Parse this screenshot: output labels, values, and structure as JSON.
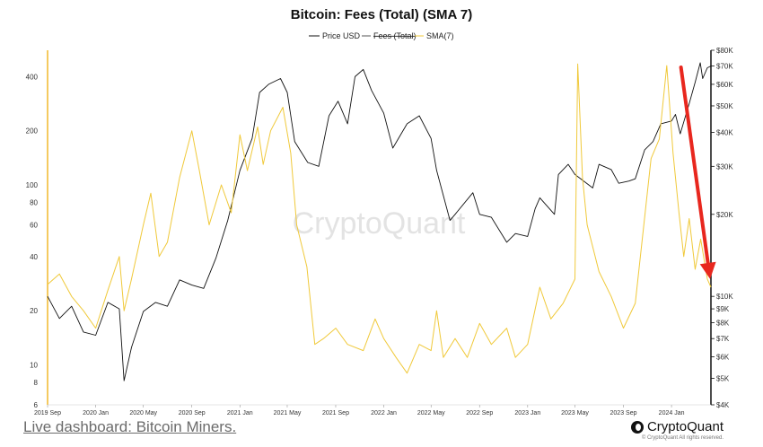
{
  "footer": {
    "link_text": "Live dashboard: Bitcoin Miners.",
    "brand": "CryptoQuant",
    "copyright": "© CryptoQuant All rights reserved."
  },
  "colors": {
    "price": "#111111",
    "fees": "#555555",
    "sma": "#f0c93a",
    "arrow": "#e8271e",
    "left_axis": "#f2b92b"
  },
  "chart_data": {
    "type": "line",
    "title": "Bitcoin: Fees (Total) (SMA 7)",
    "watermark": "CryptoQuant",
    "legend": {
      "placement": "top-center",
      "entries": [
        "Price USD",
        "Fees (Total)",
        "SMA(7)"
      ]
    },
    "x_ticks": [
      "2019 Sep",
      "2020 Jan",
      "2020 May",
      "2020 Sep",
      "2021 Jan",
      "2021 May",
      "2021 Sep",
      "2022 Jan",
      "2022 May",
      "2022 Sep",
      "2023 Jan",
      "2023 May",
      "2023 Sep",
      "2024 Jan"
    ],
    "left_axis": {
      "scale": "log",
      "ticks": [
        "6",
        "8",
        "10",
        "20",
        "40",
        "60",
        "80",
        "100",
        "200",
        "400"
      ],
      "range": [
        6,
        560
      ]
    },
    "right_axis": {
      "scale": "log",
      "ticks": [
        "$4K",
        "$5K",
        "$6K",
        "$7K",
        "$8K",
        "$9K",
        "$10K",
        "$20K",
        "$30K",
        "$40K",
        "$50K",
        "$60K",
        "$70K",
        "$80K"
      ],
      "range": [
        4000,
        80000
      ]
    },
    "x_range": [
      "2019-09-01",
      "2024-04-10"
    ],
    "series": [
      {
        "name": "Price USD",
        "axis": "right",
        "points": [
          [
            "2019-09-01",
            10000
          ],
          [
            "2019-10-01",
            8300
          ],
          [
            "2019-11-01",
            9200
          ],
          [
            "2019-12-01",
            7400
          ],
          [
            "2020-01-01",
            7200
          ],
          [
            "2020-02-01",
            9500
          ],
          [
            "2020-03-01",
            9000
          ],
          [
            "2020-03-13",
            4900
          ],
          [
            "2020-04-01",
            6500
          ],
          [
            "2020-05-01",
            8800
          ],
          [
            "2020-06-01",
            9500
          ],
          [
            "2020-07-01",
            9200
          ],
          [
            "2020-08-01",
            11500
          ],
          [
            "2020-09-01",
            11000
          ],
          [
            "2020-10-01",
            10700
          ],
          [
            "2020-11-01",
            13800
          ],
          [
            "2020-12-01",
            19000
          ],
          [
            "2021-01-01",
            29000
          ],
          [
            "2021-02-01",
            38000
          ],
          [
            "2021-02-20",
            56000
          ],
          [
            "2021-03-15",
            60000
          ],
          [
            "2021-04-14",
            63000
          ],
          [
            "2021-05-01",
            56000
          ],
          [
            "2021-05-20",
            37000
          ],
          [
            "2021-06-22",
            31000
          ],
          [
            "2021-07-20",
            30000
          ],
          [
            "2021-08-15",
            46000
          ],
          [
            "2021-09-07",
            52000
          ],
          [
            "2021-10-01",
            43000
          ],
          [
            "2021-10-20",
            64000
          ],
          [
            "2021-11-10",
            68000
          ],
          [
            "2021-12-01",
            57000
          ],
          [
            "2022-01-01",
            47000
          ],
          [
            "2022-01-24",
            35000
          ],
          [
            "2022-03-01",
            43000
          ],
          [
            "2022-04-01",
            46000
          ],
          [
            "2022-05-01",
            38000
          ],
          [
            "2022-05-15",
            29000
          ],
          [
            "2022-06-18",
            19000
          ],
          [
            "2022-07-01",
            20000
          ],
          [
            "2022-08-15",
            24000
          ],
          [
            "2022-09-01",
            20000
          ],
          [
            "2022-10-01",
            19500
          ],
          [
            "2022-11-09",
            15800
          ],
          [
            "2022-12-01",
            17000
          ],
          [
            "2023-01-01",
            16600
          ],
          [
            "2023-01-20",
            21000
          ],
          [
            "2023-02-01",
            23000
          ],
          [
            "2023-03-10",
            20000
          ],
          [
            "2023-03-20",
            28000
          ],
          [
            "2023-04-14",
            30500
          ],
          [
            "2023-05-01",
            28000
          ],
          [
            "2023-06-15",
            25000
          ],
          [
            "2023-07-01",
            30500
          ],
          [
            "2023-08-01",
            29200
          ],
          [
            "2023-08-20",
            26000
          ],
          [
            "2023-09-15",
            26500
          ],
          [
            "2023-10-01",
            27000
          ],
          [
            "2023-10-25",
            34500
          ],
          [
            "2023-11-15",
            37000
          ],
          [
            "2023-12-05",
            43000
          ],
          [
            "2024-01-01",
            44000
          ],
          [
            "2024-01-11",
            46500
          ],
          [
            "2024-01-23",
            39500
          ],
          [
            "2024-02-15",
            51000
          ],
          [
            "2024-03-01",
            61000
          ],
          [
            "2024-03-14",
            72000
          ],
          [
            "2024-03-20",
            63000
          ],
          [
            "2024-04-01",
            69000
          ],
          [
            "2024-04-10",
            70000
          ]
        ]
      },
      {
        "name": "SMA(7)",
        "axis": "left",
        "points": [
          [
            "2019-09-01",
            28
          ],
          [
            "2019-10-01",
            32
          ],
          [
            "2019-11-01",
            24
          ],
          [
            "2019-12-01",
            20
          ],
          [
            "2020-01-01",
            16
          ],
          [
            "2020-02-01",
            26
          ],
          [
            "2020-03-01",
            40
          ],
          [
            "2020-03-13",
            20
          ],
          [
            "2020-04-01",
            30
          ],
          [
            "2020-05-01",
            60
          ],
          [
            "2020-05-20",
            90
          ],
          [
            "2020-06-10",
            40
          ],
          [
            "2020-07-01",
            48
          ],
          [
            "2020-08-01",
            110
          ],
          [
            "2020-09-01",
            200
          ],
          [
            "2020-09-20",
            120
          ],
          [
            "2020-10-15",
            60
          ],
          [
            "2020-11-15",
            100
          ],
          [
            "2020-12-10",
            70
          ],
          [
            "2021-01-01",
            190
          ],
          [
            "2021-01-20",
            120
          ],
          [
            "2021-02-15",
            210
          ],
          [
            "2021-03-01",
            130
          ],
          [
            "2021-03-20",
            200
          ],
          [
            "2021-04-20",
            270
          ],
          [
            "2021-05-10",
            150
          ],
          [
            "2021-05-25",
            60
          ],
          [
            "2021-06-20",
            35
          ],
          [
            "2021-07-10",
            13
          ],
          [
            "2021-08-01",
            14
          ],
          [
            "2021-09-01",
            16
          ],
          [
            "2021-10-01",
            13
          ],
          [
            "2021-11-10",
            12
          ],
          [
            "2021-12-10",
            18
          ],
          [
            "2022-01-01",
            14
          ],
          [
            "2022-02-01",
            11
          ],
          [
            "2022-03-01",
            9
          ],
          [
            "2022-04-01",
            13
          ],
          [
            "2022-05-01",
            12
          ],
          [
            "2022-05-15",
            20
          ],
          [
            "2022-06-01",
            11
          ],
          [
            "2022-07-01",
            14
          ],
          [
            "2022-08-01",
            11
          ],
          [
            "2022-09-01",
            17
          ],
          [
            "2022-10-01",
            13
          ],
          [
            "2022-11-09",
            16
          ],
          [
            "2022-12-01",
            11
          ],
          [
            "2023-01-01",
            13
          ],
          [
            "2023-02-01",
            27
          ],
          [
            "2023-03-01",
            18
          ],
          [
            "2023-04-01",
            22
          ],
          [
            "2023-05-01",
            30
          ],
          [
            "2023-05-08",
            470
          ],
          [
            "2023-05-20",
            110
          ],
          [
            "2023-06-01",
            60
          ],
          [
            "2023-07-01",
            33
          ],
          [
            "2023-08-01",
            24
          ],
          [
            "2023-09-01",
            16
          ],
          [
            "2023-10-01",
            22
          ],
          [
            "2023-11-10",
            140
          ],
          [
            "2023-12-01",
            180
          ],
          [
            "2023-12-20",
            460
          ],
          [
            "2024-01-05",
            150
          ],
          [
            "2024-01-20",
            70
          ],
          [
            "2024-02-01",
            40
          ],
          [
            "2024-02-15",
            65
          ],
          [
            "2024-03-01",
            34
          ],
          [
            "2024-03-15",
            50
          ],
          [
            "2024-04-01",
            30
          ],
          [
            "2024-04-10",
            27
          ]
        ]
      }
    ],
    "annotations": [
      {
        "type": "arrow",
        "color": "red",
        "from": [
          "2024-01-25",
          450
        ],
        "to": [
          "2024-04-08",
          30
        ]
      }
    ]
  }
}
